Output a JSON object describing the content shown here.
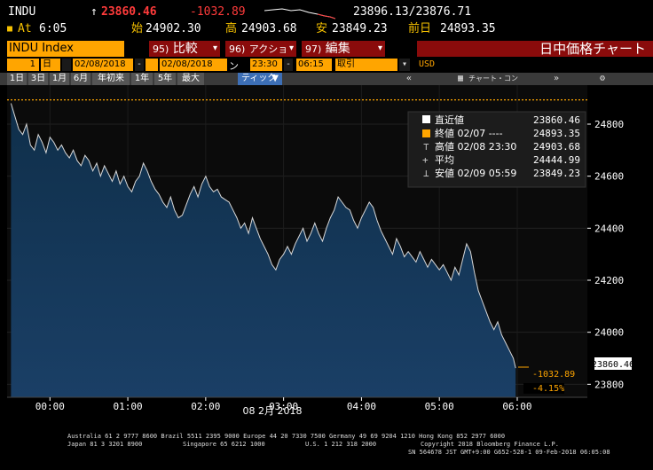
{
  "header": {
    "ticker": "INDU",
    "arrow": "↑",
    "last": "23860.46",
    "change": "-1032.89",
    "bid_ask": "23896.13/23876.71",
    "at_label": "At",
    "time": "6:05",
    "open_label": "始",
    "open": "24902.30",
    "high_label": "高",
    "high": "24903.68",
    "low_label": "安",
    "low": "23849.23",
    "prev_label": "前日",
    "prev": "24893.35"
  },
  "menubar": {
    "index": "INDU Index",
    "menu1_num": "95)",
    "menu1_label": "比較",
    "menu2_num": "96)",
    "menu2_label": "アクション",
    "menu3_num": "97)",
    "menu3_label": "編集",
    "title": "日中価格チャート"
  },
  "params": {
    "period_n": "1",
    "period_unit": "日",
    "from": "02/08/2018",
    "to": "02/08/2018",
    "from_time": "23:30",
    "to_time": "06:15",
    "field": "取引",
    "currency": "USD"
  },
  "ranges": [
    "1日",
    "3日",
    "1月",
    "6月",
    "年初来",
    "1年",
    "5年",
    "最大"
  ],
  "tick_label": "ティック",
  "chart_tools": "チャート・コンテンツ",
  "legend": {
    "items": [
      {
        "label": "直近値",
        "value": "23860.46"
      },
      {
        "label": "終値 02/07 ----",
        "value": "24893.35"
      },
      {
        "label": "高値 02/08 23:30",
        "value": "24903.68"
      },
      {
        "label": "平均",
        "value": "24444.99"
      },
      {
        "label": "安値 02/09 05:59",
        "value": "23849.23"
      }
    ]
  },
  "annot": {
    "last_value": "23860.46",
    "change": "-1032.89",
    "pct": "-4.15%"
  },
  "chart_data": {
    "type": "area",
    "title": "",
    "xlabel": "08 2月 2018",
    "ylabel": "",
    "x_ticks": [
      "00:00",
      "01:00",
      "02:00",
      "03:00",
      "04:00",
      "05:00",
      "06:00"
    ],
    "y_ticks": [
      23800,
      24000,
      24200,
      24400,
      24600,
      24800
    ],
    "ylim": [
      23750,
      24950
    ],
    "xlim": [
      -0.55,
      6.9
    ],
    "prev_close": 24893.35,
    "series": [
      {
        "x": [
          -0.5,
          -0.45,
          -0.4,
          -0.35,
          -0.3,
          -0.25,
          -0.2,
          -0.15,
          -0.1,
          -0.05,
          0.0,
          0.05,
          0.1,
          0.15,
          0.2,
          0.25,
          0.3,
          0.35,
          0.4,
          0.45,
          0.5,
          0.55,
          0.6,
          0.65,
          0.7,
          0.75,
          0.8,
          0.85,
          0.9,
          0.95,
          1.0,
          1.05,
          1.1,
          1.15,
          1.2,
          1.25,
          1.3,
          1.35,
          1.4,
          1.45,
          1.5,
          1.55,
          1.6,
          1.65,
          1.7,
          1.75,
          1.8,
          1.85,
          1.9,
          1.95,
          2.0,
          2.05,
          2.1,
          2.15,
          2.2,
          2.25,
          2.3,
          2.35,
          2.4,
          2.45,
          2.5,
          2.55,
          2.6,
          2.65,
          2.7,
          2.75,
          2.8,
          2.85,
          2.9,
          2.95,
          3.0,
          3.05,
          3.1,
          3.15,
          3.2,
          3.25,
          3.3,
          3.35,
          3.4,
          3.45,
          3.5,
          3.55,
          3.6,
          3.65,
          3.7,
          3.75,
          3.8,
          3.85,
          3.9,
          3.95,
          4.0,
          4.05,
          4.1,
          4.15,
          4.2,
          4.25,
          4.3,
          4.35,
          4.4,
          4.45,
          4.5,
          4.55,
          4.6,
          4.65,
          4.7,
          4.75,
          4.8,
          4.85,
          4.9,
          4.95,
          5.0,
          5.05,
          5.1,
          5.15,
          5.2,
          5.25,
          5.3,
          5.35,
          5.4,
          5.45,
          5.5,
          5.55,
          5.6,
          5.65,
          5.7,
          5.75,
          5.8,
          5.85,
          5.9,
          5.95,
          5.98
        ],
        "values": [
          24880,
          24830,
          24780,
          24760,
          24800,
          24720,
          24700,
          24760,
          24730,
          24690,
          24750,
          24730,
          24700,
          24720,
          24690,
          24670,
          24700,
          24660,
          24640,
          24680,
          24660,
          24620,
          24650,
          24600,
          24640,
          24610,
          24580,
          24620,
          24570,
          24600,
          24560,
          24540,
          24580,
          24600,
          24650,
          24620,
          24580,
          24550,
          24530,
          24500,
          24480,
          24520,
          24470,
          24440,
          24450,
          24490,
          24530,
          24560,
          24520,
          24570,
          24600,
          24560,
          24540,
          24550,
          24520,
          24510,
          24500,
          24470,
          24440,
          24400,
          24420,
          24380,
          24440,
          24400,
          24360,
          24330,
          24300,
          24260,
          24240,
          24280,
          24300,
          24330,
          24300,
          24340,
          24370,
          24400,
          24350,
          24380,
          24420,
          24380,
          24350,
          24400,
          24440,
          24470,
          24520,
          24500,
          24480,
          24470,
          24430,
          24400,
          24440,
          24470,
          24500,
          24480,
          24430,
          24390,
          24360,
          24330,
          24300,
          24360,
          24330,
          24290,
          24310,
          24290,
          24270,
          24310,
          24280,
          24250,
          24280,
          24260,
          24240,
          24260,
          24230,
          24200,
          24250,
          24220,
          24280,
          24340,
          24310,
          24230,
          24160,
          24120,
          24080,
          24040,
          24010,
          24040,
          23990,
          23960,
          23930,
          23900,
          23862
        ]
      }
    ]
  },
  "footer": {
    "line1": "Australia 61 2 9777 8600 Brazil 5511 2395 9000 Europe 44 20 7330 7500 Germany 49 69 9204 1210 Hong Kong 852 2977 6000",
    "line2a": "Japan 81 3 3201 8900",
    "line2b": "Singapore 65 6212 1000",
    "line2c": "U.S. 1 212 318 2000",
    "line2d": "Copyright 2018 Bloomberg Finance L.P.",
    "line3": "SN 564678 JST  GMT+9:00 G652-528-1 09-Feb-2018 06:05:08"
  }
}
